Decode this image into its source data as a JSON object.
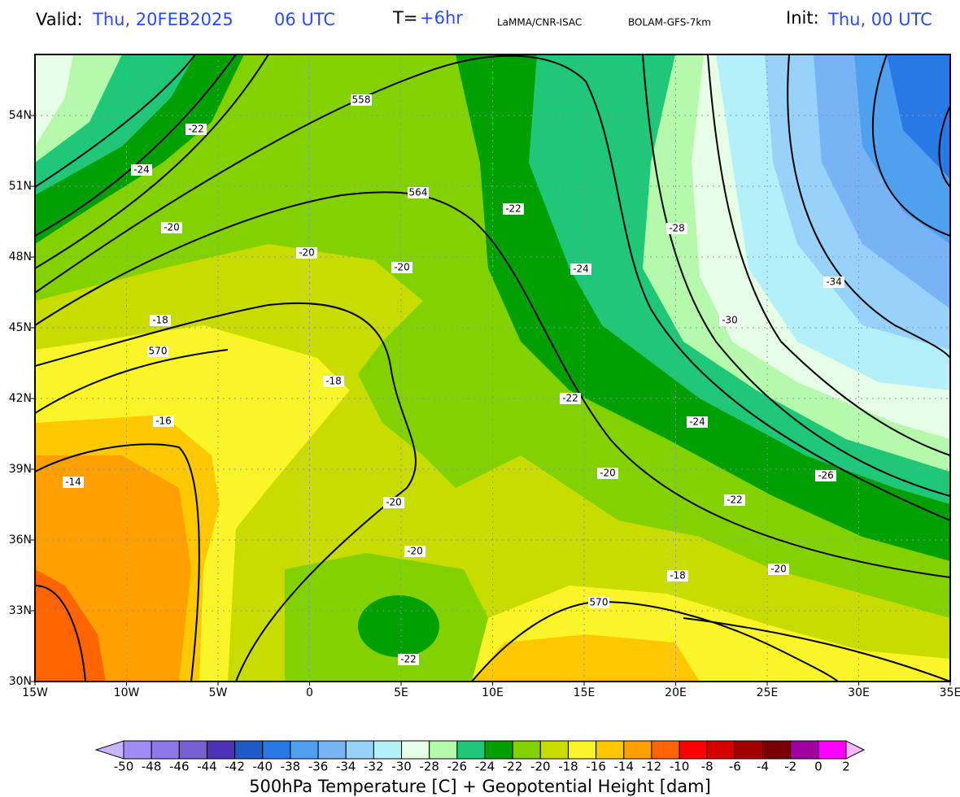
{
  "header": {
    "valid_label": "Valid:",
    "valid_date": "Thu, 20FEB2025",
    "valid_time": "06 UTC",
    "step_label": "T=",
    "step": "+6hr",
    "source": "LaMMA/CNR-ISAC",
    "model": "BOLAM-GFS-7km",
    "init_label": "Init:",
    "init": "Thu, 00 UTC"
  },
  "map": {
    "lat_labels": [
      "54N",
      "51N",
      "48N",
      "45N",
      "42N",
      "39N",
      "36N",
      "33N",
      "30N"
    ],
    "lon_labels": [
      "15W",
      "10W",
      "5W",
      "0",
      "5E",
      "10E",
      "15E",
      "20E",
      "25E",
      "30E",
      "35E"
    ],
    "height_labels": [
      558,
      564,
      570,
      570
    ],
    "temperature_labels": [
      -22,
      -24,
      -20,
      -20,
      -20,
      -18,
      -18,
      -16,
      -14,
      -22,
      -24,
      -28,
      -30,
      -34,
      -22,
      -24,
      -20,
      -26,
      -22,
      -20,
      -20,
      -18,
      -20,
      -22
    ]
  },
  "colorbar": {
    "ticks": [
      -50,
      -48,
      -46,
      -44,
      -42,
      -40,
      -38,
      -36,
      -34,
      -32,
      -30,
      -28,
      -26,
      -24,
      -22,
      -20,
      -18,
      -16,
      -14,
      -12,
      -10,
      -8,
      -6,
      -4,
      -2,
      0,
      2
    ],
    "colors": [
      "#c8b4ff",
      "#a08cf5",
      "#8c78e6",
      "#7860d2",
      "#4b32b4",
      "#1e5ac8",
      "#2878e6",
      "#50a0f0",
      "#78b4f5",
      "#96d2fa",
      "#b4f0fa",
      "#e6ffe6",
      "#b4faaa",
      "#1ec878",
      "#00a000",
      "#82d200",
      "#c8dc00",
      "#faf528",
      "#ffc800",
      "#ffa000",
      "#ff6400",
      "#ff0000",
      "#d20000",
      "#a00000",
      "#780000",
      "#a000a0",
      "#ff00ff",
      "#ffb4ff"
    ],
    "title": "500hPa Temperature [C] + Geopotential Height [dam]"
  }
}
